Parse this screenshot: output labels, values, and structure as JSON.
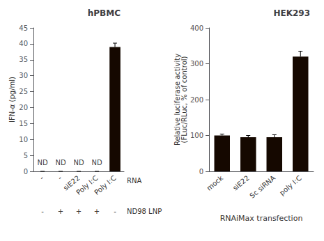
{
  "chart_data": [
    {
      "type": "bar",
      "title": "hPBMC",
      "ylabel": "IFN-α (pg/ml)",
      "categories": [
        "-",
        "-",
        "siE22",
        "Poly I:C",
        "Poly I:C"
      ],
      "values": [
        0,
        0,
        0,
        0,
        39.0
      ],
      "errors": [
        0,
        0,
        0,
        0,
        1.2
      ],
      "color": "#150800",
      "ylim": [
        0,
        45
      ],
      "yticks": [
        0,
        5,
        10,
        15,
        20,
        25,
        30,
        35,
        40,
        45
      ],
      "grid": false,
      "annotations": [
        {
          "text": "ND",
          "x": 0,
          "y": 1.2
        },
        {
          "text": "ND",
          "x": 1,
          "y": 1.2
        },
        {
          "text": "ND",
          "x": 2,
          "y": 1.2
        },
        {
          "text": "ND",
          "x": 3,
          "y": 1.2
        },
        {
          "text": "RNA",
          "row": 1
        },
        {
          "text": "-",
          "x": 0,
          "row": 2
        },
        {
          "text": "+",
          "x": 1,
          "row": 2
        },
        {
          "text": "+",
          "x": 2,
          "row": 2
        },
        {
          "text": "+",
          "x": 3,
          "row": 2
        },
        {
          "text": "-",
          "x": 4,
          "row": 2
        },
        {
          "text": "ND98 LNP",
          "row": 2
        }
      ]
    },
    {
      "type": "bar",
      "title": "HEK293",
      "ylabel": "Relative luciferase activity\n(FLuc/RLuc, % of control)",
      "xlabel": "RNAiMax transfection",
      "categories": [
        "mock",
        "siE22",
        "Sc siRNA",
        "poly I:C"
      ],
      "values": [
        100,
        95,
        95,
        320
      ],
      "errors": [
        4,
        5,
        7,
        15
      ],
      "color": "#150800",
      "ylim": [
        0,
        400
      ],
      "yticks": [
        0,
        100,
        200,
        300,
        400
      ],
      "grid": false
    }
  ]
}
